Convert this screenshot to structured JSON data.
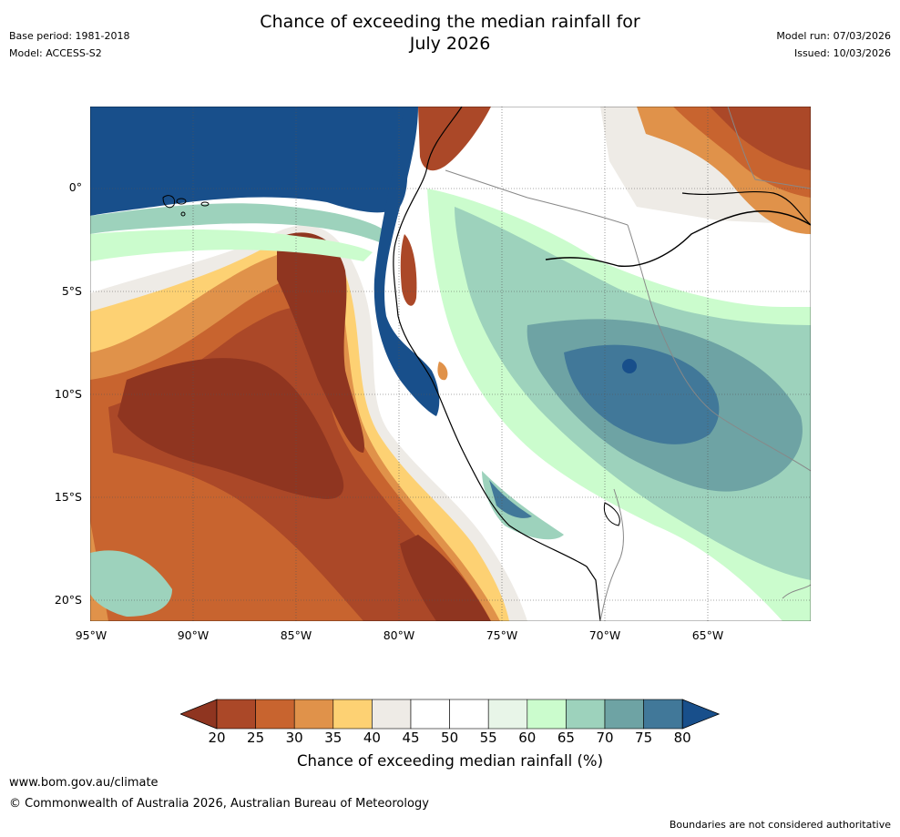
{
  "title_line1": "Chance of exceeding the median rainfall for",
  "title_line2": "July 2026",
  "meta_left": [
    "Base period: 1981-2018",
    "Model: ACCESS-S2"
  ],
  "meta_right": [
    "Model run: 07/03/2026",
    "Issued: 10/03/2026"
  ],
  "lat_labels": [
    "0°",
    "5°S",
    "10°S",
    "15°S",
    "20°S"
  ],
  "lon_labels": [
    "95°W",
    "90°W",
    "85°W",
    "80°W",
    "75°W",
    "70°W",
    "65°W"
  ],
  "colorbar": {
    "ticks": [
      "20",
      "25",
      "30",
      "35",
      "40",
      "45",
      "50",
      "55",
      "60",
      "65",
      "70",
      "75",
      "80"
    ],
    "colors": [
      "#ab4828",
      "#c8642f",
      "#e0924a",
      "#fdd173",
      "#eeebe6",
      "#ffffff",
      "#ffffff",
      "#e8f5e8",
      "#cbfccd",
      "#9dd2bc",
      "#6ea3a4",
      "#417899"
    ],
    "under_color": "#8f3520",
    "over_color": "#184f8b",
    "label": "Chance of exceeding median rainfall (%)"
  },
  "footer": {
    "url": "www.bom.gov.au/climate",
    "copyright": "© Commonwealth of Australia 2026, Australian Bureau of Meteorology",
    "note": "Boundaries are not considered authoritative"
  }
}
